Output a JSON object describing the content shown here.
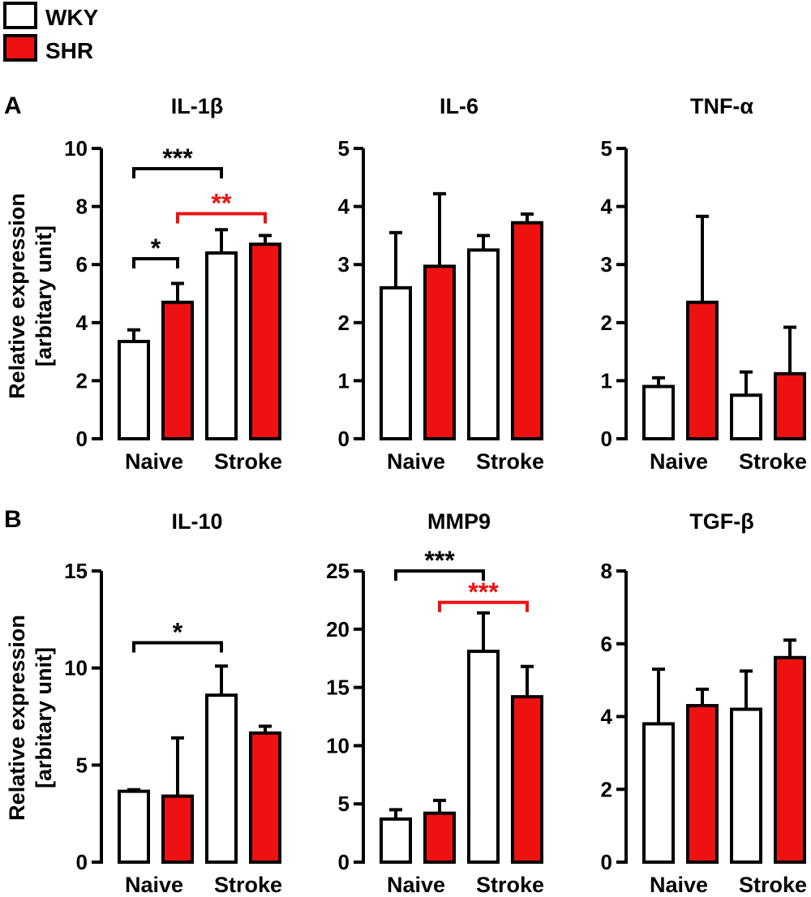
{
  "legend": [
    {
      "label": "WKY",
      "color": "#ffffff"
    },
    {
      "label": "SHR",
      "color": "#ee1111"
    }
  ],
  "panel_labels": [
    "A",
    "B"
  ],
  "ylabel_line1": "Relative expression",
  "ylabel_line2": "[arbitary unit]",
  "group_labels": [
    "Naive",
    "Stroke"
  ],
  "colors": {
    "wky": "#ffffff",
    "shr": "#ee1111",
    "axis": "#000000",
    "sig_shr": "#ee1111"
  },
  "chart_data": [
    {
      "type": "bar",
      "title": "IL-1β",
      "ylim": [
        0,
        10
      ],
      "yticks": [
        0,
        2,
        4,
        6,
        8,
        10
      ],
      "categories": [
        "Naive",
        "Stroke"
      ],
      "series": [
        {
          "name": "WKY",
          "values": [
            3.35,
            6.4
          ],
          "errors": [
            0.4,
            0.8
          ]
        },
        {
          "name": "SHR",
          "values": [
            4.7,
            6.7
          ],
          "errors": [
            0.65,
            0.3
          ]
        }
      ],
      "significance": [
        {
          "from": 0,
          "to": 2,
          "y": 9.3,
          "label": "***",
          "color": "black"
        },
        {
          "from": 1,
          "to": 3,
          "y": 7.75,
          "label": "**",
          "color": "red"
        },
        {
          "from": 0,
          "to": 1,
          "y": 6.2,
          "label": "*",
          "color": "black"
        }
      ]
    },
    {
      "type": "bar",
      "title": "IL-6",
      "ylim": [
        0,
        5
      ],
      "yticks": [
        0,
        1,
        2,
        3,
        4,
        5
      ],
      "categories": [
        "Naive",
        "Stroke"
      ],
      "series": [
        {
          "name": "WKY",
          "values": [
            2.6,
            3.25
          ],
          "errors": [
            0.95,
            0.25
          ]
        },
        {
          "name": "SHR",
          "values": [
            2.97,
            3.72
          ],
          "errors": [
            1.25,
            0.15
          ]
        }
      ],
      "significance": []
    },
    {
      "type": "bar",
      "title": "TNF-α",
      "ylim": [
        0,
        5
      ],
      "yticks": [
        0,
        1,
        2,
        3,
        4,
        5
      ],
      "categories": [
        "Naive",
        "Stroke"
      ],
      "series": [
        {
          "name": "WKY",
          "values": [
            0.9,
            0.75
          ],
          "errors": [
            0.15,
            0.4
          ]
        },
        {
          "name": "SHR",
          "values": [
            2.35,
            1.12
          ],
          "errors": [
            1.48,
            0.8
          ]
        }
      ],
      "significance": []
    },
    {
      "type": "bar",
      "title": "IL-10",
      "ylim": [
        0,
        15
      ],
      "yticks": [
        0,
        5,
        10,
        15
      ],
      "categories": [
        "Naive",
        "Stroke"
      ],
      "series": [
        {
          "name": "WKY",
          "values": [
            3.65,
            8.6
          ],
          "errors": [
            0.08,
            1.5
          ]
        },
        {
          "name": "SHR",
          "values": [
            3.4,
            6.65
          ],
          "errors": [
            3.0,
            0.35
          ]
        }
      ],
      "significance": [
        {
          "from": 0,
          "to": 2,
          "y": 11.3,
          "label": "*",
          "color": "black"
        }
      ]
    },
    {
      "type": "bar",
      "title": "MMP9",
      "ylim": [
        0,
        25
      ],
      "yticks": [
        0,
        5,
        10,
        15,
        20,
        25
      ],
      "categories": [
        "Naive",
        "Stroke"
      ],
      "series": [
        {
          "name": "WKY",
          "values": [
            3.7,
            18.1
          ],
          "errors": [
            0.8,
            3.3
          ]
        },
        {
          "name": "SHR",
          "values": [
            4.2,
            14.2
          ],
          "errors": [
            1.1,
            2.6
          ]
        }
      ],
      "significance": [
        {
          "from": 0,
          "to": 2,
          "y": 25.0,
          "label": "***",
          "color": "black"
        },
        {
          "from": 1,
          "to": 3,
          "y": 22.3,
          "label": "***",
          "color": "red"
        }
      ]
    },
    {
      "type": "bar",
      "title": "TGF-β",
      "ylim": [
        0,
        8
      ],
      "yticks": [
        0,
        2,
        4,
        6,
        8
      ],
      "categories": [
        "Naive",
        "Stroke"
      ],
      "series": [
        {
          "name": "WKY",
          "values": [
            3.8,
            4.2
          ],
          "errors": [
            1.5,
            1.05
          ]
        },
        {
          "name": "SHR",
          "values": [
            4.3,
            5.62
          ],
          "errors": [
            0.45,
            0.48
          ]
        }
      ],
      "significance": []
    }
  ]
}
